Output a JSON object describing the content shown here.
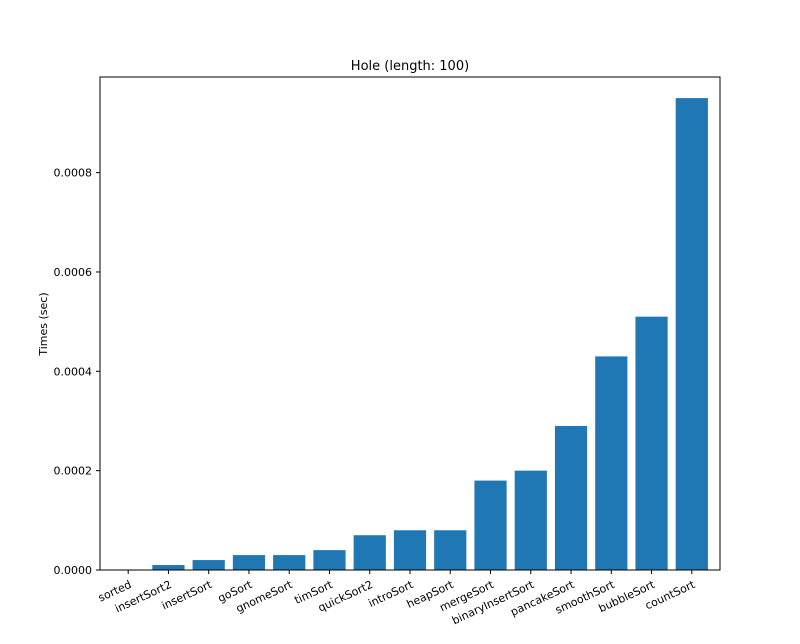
{
  "chart_data": {
    "type": "bar",
    "title": "Hole (length: 100)",
    "xlabel": "",
    "ylabel": "Times (sec)",
    "categories": [
      "sorted",
      "insertSort2",
      "insertSort",
      "goSort",
      "gnomeSort",
      "timSort",
      "quickSort2",
      "introSort",
      "heapSort",
      "mergeSort",
      "binaryInsertSort",
      "pancakeSort",
      "smoothSort",
      "bubbleSort",
      "countSort"
    ],
    "values": [
      0.0,
      1e-05,
      2e-05,
      3e-05,
      3e-05,
      4e-05,
      7e-05,
      8e-05,
      8e-05,
      0.00018,
      0.0002,
      0.00029,
      0.00043,
      0.00051,
      0.00095
    ],
    "ylim": [
      0,
      0.0009925
    ],
    "yticks": [
      0,
      0.0002,
      0.0004,
      0.0006,
      0.0008
    ],
    "ytick_labels": [
      "0.0000",
      "0.0002",
      "0.0004",
      "0.0006",
      "0.0008"
    ],
    "bar_color": "#1f77b4",
    "grid": false,
    "xtick_rotation_deg": -25
  }
}
